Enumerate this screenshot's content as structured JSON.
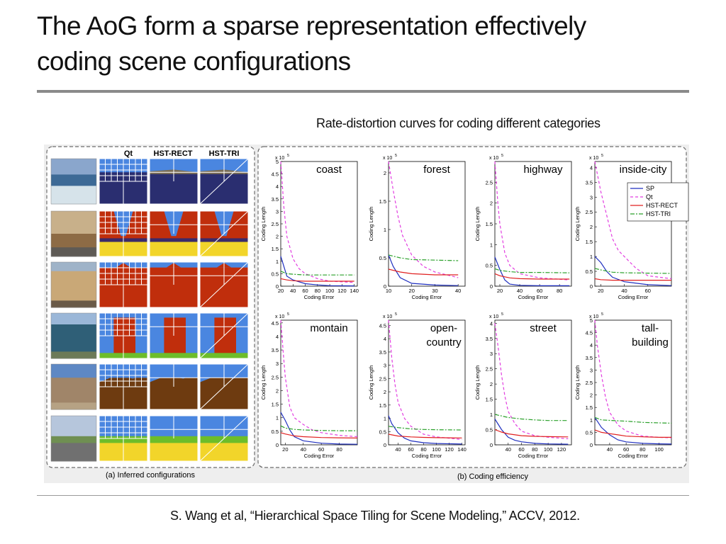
{
  "slide": {
    "title_line1": "The AoG form a sparse representation effectively",
    "title_line2": "coding scene configurations",
    "figure_caption": "Rate-distortion curves for coding different categories",
    "citation": "S. Wang et al, “Hierarchical Space Tiling for Scene Modeling,” ACCV, 2012."
  },
  "left_panel": {
    "column_headers": [
      "Qt",
      "HST-RECT",
      "HST-TRI"
    ],
    "caption": "(a) Inferred configurations",
    "rows": [
      {
        "scene": "coast"
      },
      {
        "scene": "street"
      },
      {
        "scene": "inside-city"
      },
      {
        "scene": "tall-building"
      },
      {
        "scene": "montain"
      },
      {
        "scene": "highway"
      }
    ],
    "colors": {
      "sky": "#4a86e0",
      "water": "#2a2e70",
      "building": "#c02e0c",
      "ground": "#f2d52a",
      "mountain": "#6e3b10",
      "grass": "#6dbd2a"
    }
  },
  "right_panel": {
    "caption": "(b) Coding efficiency",
    "xlabel": "Coding Error",
    "ylabel": "Coding Length",
    "exponent": "x 10",
    "exponent_power": "5",
    "legend": {
      "entries": [
        "SP",
        "Qt",
        "HST-RECT",
        "HST-TRI"
      ],
      "colors": [
        "#1f2fbf",
        "#e23ee0",
        "#e02020",
        "#2aa02a"
      ],
      "styles": [
        "solid",
        "dashed",
        "solid",
        "dashdot"
      ]
    }
  },
  "chart_data": [
    {
      "type": "line",
      "title": "coast",
      "title_lines": [
        "coast"
      ],
      "xlabel": "Coding Error",
      "ylabel": "Coding Length",
      "xlim": [
        20,
        145
      ],
      "ylim": [
        0,
        5
      ],
      "xticks": [
        20,
        40,
        60,
        80,
        100,
        120,
        140
      ],
      "yticks": [
        0,
        0.5,
        1,
        1.5,
        2,
        2.5,
        3,
        3.5,
        4,
        4.5,
        5
      ],
      "y_scale_label": "x 10^5",
      "series": [
        {
          "name": "SP",
          "x": [
            20,
            25,
            30,
            40,
            60,
            80,
            100,
            140
          ],
          "y": [
            1.2,
            0.8,
            0.4,
            0.25,
            0.1,
            0.05,
            0.02,
            0.01
          ]
        },
        {
          "name": "Qt",
          "x": [
            20,
            25,
            30,
            40,
            50,
            60,
            80,
            100,
            140
          ],
          "y": [
            5.0,
            3.2,
            2.0,
            1.1,
            0.7,
            0.5,
            0.3,
            0.2,
            0.15
          ]
        },
        {
          "name": "HST-RECT",
          "x": [
            20,
            30,
            40,
            60,
            80,
            100,
            140
          ],
          "y": [
            0.3,
            0.25,
            0.22,
            0.2,
            0.2,
            0.2,
            0.2
          ]
        },
        {
          "name": "HST-TRI",
          "x": [
            20,
            30,
            40,
            60,
            80,
            100,
            140
          ],
          "y": [
            0.6,
            0.5,
            0.48,
            0.45,
            0.45,
            0.45,
            0.45
          ]
        }
      ]
    },
    {
      "type": "line",
      "title": "forest",
      "title_lines": [
        "forest"
      ],
      "xlabel": "Coding Error",
      "ylabel": "Coding Length",
      "xlim": [
        10,
        43
      ],
      "ylim": [
        0,
        2.2
      ],
      "xticks": [
        10,
        20,
        30,
        40
      ],
      "yticks": [
        0,
        0.5,
        1,
        1.5,
        2
      ],
      "y_scale_label": "x 10^5",
      "series": [
        {
          "name": "SP",
          "x": [
            10,
            12,
            15,
            20,
            30,
            40
          ],
          "y": [
            0.55,
            0.35,
            0.15,
            0.05,
            0.02,
            0.01
          ]
        },
        {
          "name": "Qt",
          "x": [
            10,
            12,
            14,
            16,
            20,
            25,
            30,
            40
          ],
          "y": [
            2.2,
            1.7,
            1.25,
            0.9,
            0.55,
            0.35,
            0.25,
            0.15
          ]
        },
        {
          "name": "HST-RECT",
          "x": [
            10,
            15,
            20,
            30,
            40
          ],
          "y": [
            0.3,
            0.25,
            0.22,
            0.2,
            0.2
          ]
        },
        {
          "name": "HST-TRI",
          "x": [
            10,
            15,
            20,
            30,
            40
          ],
          "y": [
            0.55,
            0.5,
            0.47,
            0.46,
            0.45
          ]
        }
      ]
    },
    {
      "type": "line",
      "title": "highway",
      "title_lines": [
        "highway"
      ],
      "xlabel": "Coding Error",
      "ylabel": "Coding Length",
      "xlim": [
        15,
        92
      ],
      "ylim": [
        0,
        3
      ],
      "xticks": [
        20,
        40,
        60,
        80
      ],
      "yticks": [
        0,
        0.5,
        1,
        1.5,
        2,
        2.5
      ],
      "y_scale_label": "x 10^5",
      "series": [
        {
          "name": "SP",
          "x": [
            15,
            20,
            25,
            30,
            40,
            60,
            90
          ],
          "y": [
            0.7,
            0.4,
            0.15,
            0.05,
            0.02,
            0.01,
            0.01
          ]
        },
        {
          "name": "Qt",
          "x": [
            15,
            18,
            20,
            25,
            30,
            40,
            60,
            90
          ],
          "y": [
            3.0,
            2.0,
            1.5,
            0.8,
            0.5,
            0.3,
            0.2,
            0.15
          ]
        },
        {
          "name": "HST-RECT",
          "x": [
            15,
            20,
            30,
            40,
            60,
            90
          ],
          "y": [
            0.3,
            0.25,
            0.2,
            0.18,
            0.17,
            0.17
          ]
        },
        {
          "name": "HST-TRI",
          "x": [
            15,
            20,
            30,
            40,
            60,
            90
          ],
          "y": [
            0.42,
            0.38,
            0.35,
            0.33,
            0.33,
            0.32
          ]
        }
      ]
    },
    {
      "type": "line",
      "title": "inside-city",
      "title_lines": [
        "inside-city"
      ],
      "xlabel": "Coding Error",
      "ylabel": "Coding Length",
      "xlim": [
        15,
        80
      ],
      "ylim": [
        0,
        4.2
      ],
      "xticks": [
        20,
        40,
        60
      ],
      "yticks": [
        0,
        0.5,
        1,
        1.5,
        2,
        2.5,
        3,
        3.5,
        4
      ],
      "y_scale_label": "x 10^5",
      "series": [
        {
          "name": "SP",
          "x": [
            15,
            20,
            25,
            30,
            40,
            60,
            80
          ],
          "y": [
            1.0,
            0.8,
            0.5,
            0.3,
            0.15,
            0.05,
            0.02
          ]
        },
        {
          "name": "Qt",
          "x": [
            15,
            18,
            20,
            25,
            30,
            35,
            40,
            50,
            60,
            80
          ],
          "y": [
            4.2,
            3.6,
            3.2,
            2.4,
            1.6,
            1.2,
            1.0,
            0.6,
            0.35,
            0.25
          ]
        },
        {
          "name": "HST-RECT",
          "x": [
            15,
            20,
            30,
            40,
            60,
            80
          ],
          "y": [
            0.25,
            0.22,
            0.2,
            0.2,
            0.2,
            0.2
          ]
        },
        {
          "name": "HST-TRI",
          "x": [
            15,
            20,
            30,
            40,
            60,
            80
          ],
          "y": [
            0.6,
            0.55,
            0.47,
            0.45,
            0.44,
            0.43
          ]
        }
      ]
    },
    {
      "type": "line",
      "title": "montain",
      "title_lines": [
        "montain"
      ],
      "xlabel": "Coding Error",
      "ylabel": "Coding Length",
      "xlim": [
        15,
        100
      ],
      "ylim": [
        0,
        4.6
      ],
      "xticks": [
        20,
        40,
        60,
        80
      ],
      "yticks": [
        0,
        0.5,
        1,
        1.5,
        2,
        2.5,
        3,
        3.5,
        4,
        4.5
      ],
      "y_scale_label": "x 10^5",
      "series": [
        {
          "name": "SP",
          "x": [
            15,
            20,
            25,
            30,
            40,
            60,
            80,
            100
          ],
          "y": [
            1.2,
            0.9,
            0.55,
            0.3,
            0.15,
            0.06,
            0.03,
            0.02
          ]
        },
        {
          "name": "Qt",
          "x": [
            15,
            18,
            20,
            25,
            30,
            40,
            50,
            60,
            80,
            100
          ],
          "y": [
            4.6,
            3.3,
            2.5,
            1.4,
            1.0,
            0.75,
            0.55,
            0.45,
            0.35,
            0.3
          ]
        },
        {
          "name": "HST-RECT",
          "x": [
            15,
            20,
            30,
            40,
            60,
            80,
            100
          ],
          "y": [
            0.45,
            0.4,
            0.33,
            0.3,
            0.27,
            0.26,
            0.25
          ]
        },
        {
          "name": "HST-TRI",
          "x": [
            15,
            20,
            30,
            40,
            60,
            80,
            100
          ],
          "y": [
            0.7,
            0.62,
            0.57,
            0.55,
            0.53,
            0.52,
            0.52
          ]
        }
      ]
    },
    {
      "type": "line",
      "title": "open-country",
      "title_lines": [
        "open-",
        "country"
      ],
      "xlabel": "Coding Error",
      "ylabel": "Coding Length",
      "xlim": [
        25,
        145
      ],
      "ylim": [
        0,
        4.7
      ],
      "xticks": [
        40,
        60,
        80,
        100,
        120,
        140
      ],
      "yticks": [
        0,
        0.5,
        1,
        1.5,
        2,
        2.5,
        3,
        3.5,
        4,
        4.5
      ],
      "y_scale_label": "x 10^5",
      "series": [
        {
          "name": "SP",
          "x": [
            25,
            30,
            40,
            50,
            60,
            80,
            100,
            140
          ],
          "y": [
            1.1,
            0.8,
            0.45,
            0.25,
            0.15,
            0.08,
            0.05,
            0.03
          ]
        },
        {
          "name": "Qt",
          "x": [
            25,
            30,
            35,
            40,
            50,
            60,
            80,
            100,
            140
          ],
          "y": [
            4.7,
            3.3,
            2.3,
            1.6,
            1.0,
            0.7,
            0.4,
            0.3,
            0.2
          ]
        },
        {
          "name": "HST-RECT",
          "x": [
            25,
            40,
            60,
            80,
            100,
            140
          ],
          "y": [
            0.4,
            0.33,
            0.3,
            0.28,
            0.27,
            0.26
          ]
        },
        {
          "name": "HST-TRI",
          "x": [
            25,
            40,
            60,
            80,
            100,
            140
          ],
          "y": [
            0.7,
            0.65,
            0.6,
            0.58,
            0.57,
            0.56
          ]
        }
      ]
    },
    {
      "type": "line",
      "title": "street",
      "title_lines": [
        "street"
      ],
      "xlabel": "Coding Error",
      "ylabel": "Coding Length",
      "xlim": [
        20,
        135
      ],
      "ylim": [
        0,
        4.1
      ],
      "xticks": [
        40,
        60,
        80,
        100,
        120
      ],
      "yticks": [
        0,
        0.5,
        1,
        1.5,
        2,
        2.5,
        3,
        3.5,
        4
      ],
      "y_scale_label": "x 10^5",
      "series": [
        {
          "name": "SP",
          "x": [
            20,
            30,
            40,
            50,
            60,
            80,
            100,
            130
          ],
          "y": [
            0.85,
            0.5,
            0.25,
            0.15,
            0.1,
            0.05,
            0.03,
            0.02
          ]
        },
        {
          "name": "Qt",
          "x": [
            20,
            25,
            30,
            35,
            40,
            50,
            60,
            80,
            100,
            130
          ],
          "y": [
            4.0,
            3.2,
            2.3,
            1.6,
            1.1,
            0.7,
            0.45,
            0.3,
            0.25,
            0.2
          ]
        },
        {
          "name": "HST-RECT",
          "x": [
            20,
            30,
            40,
            60,
            80,
            100,
            130
          ],
          "y": [
            0.5,
            0.42,
            0.36,
            0.3,
            0.28,
            0.27,
            0.26
          ]
        },
        {
          "name": "HST-TRI",
          "x": [
            20,
            30,
            40,
            60,
            80,
            100,
            130
          ],
          "y": [
            1.0,
            0.95,
            0.9,
            0.85,
            0.82,
            0.8,
            0.8
          ]
        }
      ]
    },
    {
      "type": "line",
      "title": "tall-building",
      "title_lines": [
        "tall-",
        "building"
      ],
      "xlabel": "Coding Error",
      "ylabel": "Coding Length",
      "xlim": [
        22,
        115
      ],
      "ylim": [
        0,
        5
      ],
      "xticks": [
        40,
        60,
        80,
        100
      ],
      "yticks": [
        0,
        0.5,
        1,
        1.5,
        2,
        2.5,
        3,
        3.5,
        4,
        4.5,
        5
      ],
      "y_scale_label": "x 10^5",
      "series": [
        {
          "name": "SP",
          "x": [
            22,
            30,
            40,
            50,
            60,
            80,
            100,
            115
          ],
          "y": [
            1.1,
            0.7,
            0.4,
            0.2,
            0.12,
            0.06,
            0.04,
            0.03
          ]
        },
        {
          "name": "Qt",
          "x": [
            22,
            25,
            30,
            35,
            40,
            50,
            60,
            80,
            100,
            115
          ],
          "y": [
            5.0,
            4.0,
            2.8,
            1.9,
            1.3,
            0.8,
            0.55,
            0.35,
            0.3,
            0.28
          ]
        },
        {
          "name": "HST-RECT",
          "x": [
            22,
            30,
            40,
            50,
            60,
            80,
            100,
            115
          ],
          "y": [
            0.6,
            0.5,
            0.45,
            0.4,
            0.35,
            0.32,
            0.3,
            0.3
          ]
        },
        {
          "name": "HST-TRI",
          "x": [
            22,
            30,
            40,
            60,
            80,
            100,
            115
          ],
          "y": [
            1.1,
            1.0,
            0.98,
            0.95,
            0.9,
            0.88,
            0.87
          ]
        }
      ]
    }
  ]
}
